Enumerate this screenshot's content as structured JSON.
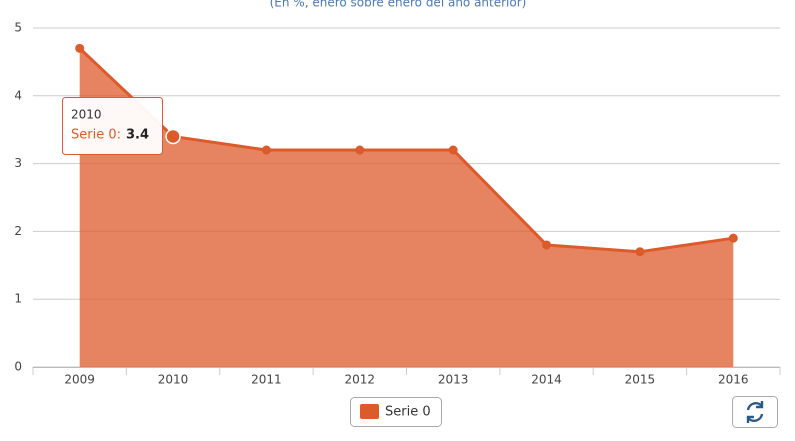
{
  "chart_data": {
    "type": "area",
    "subtitle": "(En %, enero sobre enero del año anterior)",
    "categories": [
      "2009",
      "2010",
      "2011",
      "2012",
      "2013",
      "2014",
      "2015",
      "2016"
    ],
    "series": [
      {
        "name": "Serie 0",
        "color": "#dd5a2b",
        "values": [
          4.7,
          3.4,
          3.2,
          3.2,
          3.2,
          1.8,
          1.7,
          1.9
        ]
      }
    ],
    "ylim": [
      0,
      5
    ],
    "yticks": [
      0,
      1,
      2,
      3,
      4,
      5
    ],
    "grid": true,
    "tooltip": {
      "title": "2010",
      "label": "Serie 0:",
      "value": 3.4
    }
  }
}
